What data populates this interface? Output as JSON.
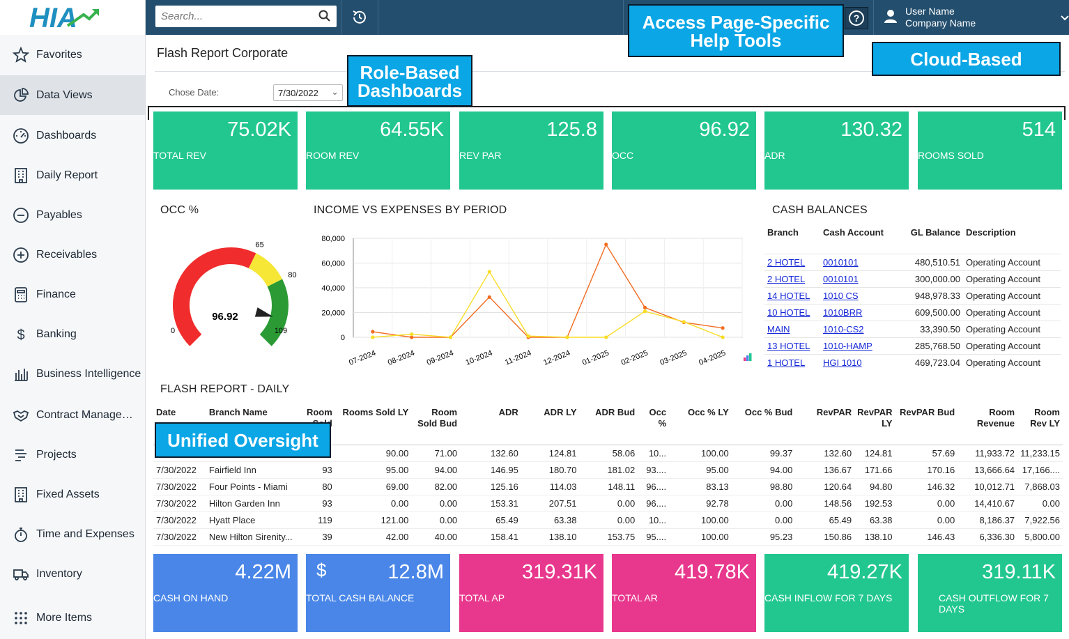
{
  "app": {
    "logo_text": "HIA"
  },
  "sidebar": {
    "items": [
      {
        "label": "Favorites",
        "icon": "star-icon"
      },
      {
        "label": "Data Views",
        "icon": "pie-chart-icon"
      },
      {
        "label": "Dashboards",
        "icon": "gauge-icon"
      },
      {
        "label": "Daily Report",
        "icon": "building-icon"
      },
      {
        "label": "Payables",
        "icon": "minus-circle-icon"
      },
      {
        "label": "Receivables",
        "icon": "plus-circle-icon"
      },
      {
        "label": "Finance",
        "icon": "calculator-icon"
      },
      {
        "label": "Banking",
        "icon": "dollar-icon"
      },
      {
        "label": "Business Intelligence",
        "icon": "bar-chart-icon"
      },
      {
        "label": "Contract Management",
        "icon": "handshake-icon"
      },
      {
        "label": "Projects",
        "icon": "gantt-icon"
      },
      {
        "label": "Fixed Assets",
        "icon": "building-icon"
      },
      {
        "label": "Time and Expenses",
        "icon": "stopwatch-icon"
      },
      {
        "label": "Inventory",
        "icon": "truck-icon"
      },
      {
        "label": "More Items",
        "icon": "grid-dots-icon"
      }
    ]
  },
  "topbar": {
    "search_placeholder": "Search...",
    "user_name": "User Name",
    "company_name": "Company Name"
  },
  "callouts": {
    "help": "Access Page-Specific Help Tools",
    "cloud": "Cloud-Based",
    "role": "Role-Based Dashboards",
    "unified": "Unified Oversight"
  },
  "page": {
    "title": "Flash Report Corporate",
    "date_label": "Chose Date:",
    "date_value": "7/30/2022"
  },
  "kpis_top": [
    {
      "value": "75.02K",
      "label": "TOTAL REV"
    },
    {
      "value": "64.55K",
      "label": "ROOM REV"
    },
    {
      "value": "125.8",
      "label": "REV PAR"
    },
    {
      "value": "96.92",
      "label": "OCC"
    },
    {
      "value": "130.32",
      "label": "ADR"
    },
    {
      "value": "514",
      "label": "ROOMS SOLD"
    }
  ],
  "gauge": {
    "title": "OCC %",
    "value": 96.92,
    "value_label": "96.92",
    "min": 0,
    "max": 109,
    "t1": 65,
    "t2": 80,
    "min_label": "0",
    "max_label": "109",
    "t1_label": "65",
    "t2_label": "80"
  },
  "chart_data": {
    "type": "line",
    "title": "INCOME VS EXPENSES BY PERIOD",
    "categories": [
      "07-2024",
      "08-2024",
      "09-2024",
      "10-2024",
      "11-2024",
      "12-2024",
      "01-2025",
      "02-2025",
      "03-2025",
      "04-2025"
    ],
    "series": [
      {
        "name": "Income",
        "color": "#f26c22",
        "values": [
          4500,
          0,
          0,
          32500,
          0,
          0,
          75000,
          24000,
          12000,
          7500
        ]
      },
      {
        "name": "Expenses",
        "color": "#f7dd25",
        "values": [
          0,
          2500,
          0,
          53000,
          1000,
          0,
          0,
          21000,
          12500,
          0
        ]
      }
    ],
    "ylim": [
      0,
      80000
    ],
    "yticks": [
      0,
      20000,
      40000,
      60000,
      80000
    ],
    "ytick_labels": [
      "0",
      "20,000",
      "40,000",
      "60,000",
      "80,000"
    ]
  },
  "cash": {
    "title": "CASH BALANCES",
    "headers": {
      "branch": "Branch",
      "cash": "Cash Account",
      "gl": "GL Balance",
      "desc": "Description"
    },
    "rows": [
      {
        "branch": "2 HOTEL",
        "account": "0010101",
        "gl": "480,510.51",
        "desc": "Operating Account"
      },
      {
        "branch": "2 HOTEL",
        "account": "0010101",
        "gl": "300,000.00",
        "desc": "Operating Account"
      },
      {
        "branch": "14 HOTEL",
        "account": "1010 CS",
        "gl": "948,978.33",
        "desc": "Operating Account"
      },
      {
        "branch": "10 HOTEL",
        "account": "1010BRR",
        "gl": "609,500.00",
        "desc": "Operating Account"
      },
      {
        "branch": "MAIN",
        "account": "1010-CS2",
        "gl": "33,390.50",
        "desc": "Operating Account"
      },
      {
        "branch": "13 HOTEL",
        "account": "1010-HAMP",
        "gl": "285,768.50",
        "desc": "Operating Account"
      },
      {
        "branch": "1 HOTEL",
        "account": "HGI 1010",
        "gl": "469,723.04",
        "desc": "Operating Account"
      }
    ]
  },
  "daily": {
    "title": "FLASH REPORT - DAILY",
    "headers": [
      "Date",
      "Branch Name",
      "Room Sold",
      "Rooms Sold LY",
      "Room Sold Bud",
      "ADR",
      "ADR LY",
      "ADR Bud",
      "Occ %",
      "Occ % LY",
      "Occ % Bud",
      "RevPAR",
      "RevPAR LY",
      "RevPAR Bud",
      "Room Revenue",
      "Room Rev LY"
    ],
    "rows": [
      [
        "",
        "",
        "",
        "90.00",
        "71.00",
        "132.60",
        "124.81",
        "58.06",
        "10...",
        "100.00",
        "99.37",
        "132.60",
        "124.81",
        "57.69",
        "11,933.72",
        "11,233.15"
      ],
      [
        "7/30/2022",
        "Fairfield Inn",
        "93",
        "95.00",
        "94.00",
        "146.95",
        "180.70",
        "181.02",
        "93....",
        "95.00",
        "94.00",
        "136.67",
        "171.66",
        "170.16",
        "13,666.64",
        "17,166...."
      ],
      [
        "7/30/2022",
        "Four Points - Miami",
        "80",
        "69.00",
        "82.00",
        "125.16",
        "114.03",
        "148.11",
        "96....",
        "83.13",
        "98.80",
        "120.64",
        "94.80",
        "146.32",
        "10,012.71",
        "7,868.03"
      ],
      [
        "7/30/2022",
        "Hilton Garden Inn",
        "93",
        "0.00",
        "0.00",
        "153.31",
        "207.51",
        "0.00",
        "96....",
        "92.78",
        "0.00",
        "148.56",
        "192.53",
        "0.00",
        "14,410.67",
        "0.00"
      ],
      [
        "7/30/2022",
        "Hyatt Place",
        "119",
        "121.00",
        "0.00",
        "65.49",
        "63.38",
        "0.00",
        "10...",
        "100.00",
        "0.00",
        "65.49",
        "63.38",
        "0.00",
        "8,186.37",
        "7,922.56"
      ],
      [
        "7/30/2022",
        "New Hilton Sirenity...",
        "39",
        "42.00",
        "40.00",
        "158.41",
        "138.10",
        "153.75",
        "95....",
        "100.00",
        "95.23",
        "150.86",
        "138.10",
        "146.43",
        "6,336.30",
        "5,800.00"
      ]
    ]
  },
  "kpis_bottom": [
    {
      "value": "4.22M",
      "label": "CASH ON HAND",
      "color": "blue",
      "icon": ""
    },
    {
      "value": "12.8M",
      "label": "TOTAL CASH BALANCE",
      "color": "blue",
      "icon": "$"
    },
    {
      "value": "319.31K",
      "label": "TOTAL AP",
      "color": "pink",
      "icon": ""
    },
    {
      "value": "419.78K",
      "label": "TOTAL AR",
      "color": "pink",
      "icon": ""
    },
    {
      "value": "419.27K",
      "label": "CASH INFLOW FOR 7 DAYS",
      "color": "green",
      "icon": ""
    },
    {
      "value": "319.11K",
      "label": "CASH OUTFLOW FOR 7 DAYS",
      "color": "green",
      "icon": ""
    }
  ]
}
